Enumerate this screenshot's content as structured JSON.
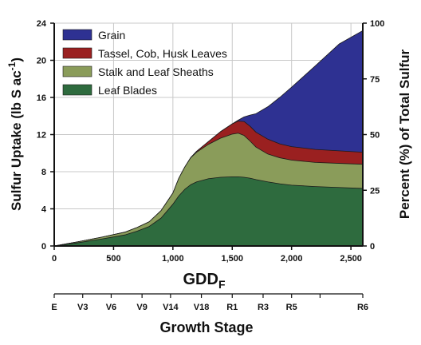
{
  "chart_data": {
    "type": "area",
    "stacked": true,
    "xlabel": "GDD",
    "xlabel_sub": "F",
    "ylabel": "Sulfur Uptake (lb S ac",
    "ylabel_sup": "-1",
    "ylabel_close": ")",
    "y2label": "Percent (%) of Total Sulfur",
    "secondary_xlabel": "Growth Stage",
    "xlim": [
      0,
      2600
    ],
    "ylim": [
      0,
      24
    ],
    "y2lim": [
      0,
      100
    ],
    "grid": true,
    "legend_position": "top-left",
    "x_ticks": [
      {
        "value": 0,
        "label": "0"
      },
      {
        "value": 500,
        "label": "500"
      },
      {
        "value": 1000,
        "label": "1,000"
      },
      {
        "value": 1500,
        "label": "1,500"
      },
      {
        "value": 2000,
        "label": "2,000"
      },
      {
        "value": 2500,
        "label": "2,500"
      }
    ],
    "y_ticks": [
      {
        "value": 0,
        "label": "0"
      },
      {
        "value": 4,
        "label": "4"
      },
      {
        "value": 8,
        "label": "8"
      },
      {
        "value": 12,
        "label": "12"
      },
      {
        "value": 16,
        "label": "16"
      },
      {
        "value": 20,
        "label": "20"
      },
      {
        "value": 24,
        "label": "24"
      }
    ],
    "y2_ticks": [
      {
        "value": 0,
        "label": "0"
      },
      {
        "value": 25,
        "label": "25"
      },
      {
        "value": 50,
        "label": "50"
      },
      {
        "value": 75,
        "label": "75"
      },
      {
        "value": 100,
        "label": "100"
      }
    ],
    "growth_stages": [
      {
        "label": "E",
        "gdd": 0
      },
      {
        "label": "V3",
        "gdd": 240
      },
      {
        "label": "V6",
        "gdd": 480
      },
      {
        "label": "V9",
        "gdd": 740
      },
      {
        "label": "V14",
        "gdd": 980
      },
      {
        "label": "V18",
        "gdd": 1240
      },
      {
        "label": "R1",
        "gdd": 1500
      },
      {
        "label": "R3",
        "gdd": 1760
      },
      {
        "label": "R5",
        "gdd": 2000
      },
      {
        "label": "",
        "gdd": 2240
      },
      {
        "label": "R6",
        "gdd": 2600
      }
    ],
    "x": [
      0,
      200,
      400,
      600,
      700,
      800,
      900,
      1000,
      1050,
      1100,
      1150,
      1200,
      1300,
      1400,
      1500,
      1550,
      1600,
      1650,
      1700,
      1800,
      1900,
      2000,
      2200,
      2400,
      2600
    ],
    "series": [
      {
        "name": "Leaf Blades",
        "color": "#2e6b3e",
        "values": [
          0,
          0.35,
          0.75,
          1.2,
          1.6,
          2.1,
          3.0,
          4.5,
          5.4,
          6.1,
          6.6,
          6.9,
          7.25,
          7.4,
          7.45,
          7.45,
          7.4,
          7.3,
          7.15,
          6.9,
          6.7,
          6.55,
          6.4,
          6.3,
          6.2
        ]
      },
      {
        "name": "Stalk and Leaf Sheaths",
        "color": "#8a9c5a",
        "values": [
          0,
          0.1,
          0.2,
          0.3,
          0.4,
          0.5,
          0.8,
          1.2,
          1.9,
          2.4,
          2.9,
          3.2,
          3.7,
          4.2,
          4.6,
          4.7,
          4.5,
          4.0,
          3.5,
          3.0,
          2.8,
          2.7,
          2.6,
          2.6,
          2.6
        ]
      },
      {
        "name": "Tassel, Cob, Husk Leaves",
        "color": "#9a2020",
        "values": [
          0,
          0,
          0,
          0,
          0,
          0,
          0,
          0,
          0,
          0,
          0.02,
          0.1,
          0.3,
          0.7,
          1.1,
          1.3,
          1.5,
          1.6,
          1.6,
          1.6,
          1.5,
          1.45,
          1.4,
          1.35,
          1.3
        ]
      },
      {
        "name": "Grain",
        "color": "#2e3192",
        "values": [
          0,
          0,
          0,
          0,
          0,
          0,
          0,
          0,
          0,
          0,
          0,
          0,
          0,
          0,
          0,
          0.1,
          0.5,
          1.2,
          2.0,
          3.5,
          5.0,
          6.4,
          9.0,
          11.5,
          13.1
        ]
      }
    ]
  }
}
